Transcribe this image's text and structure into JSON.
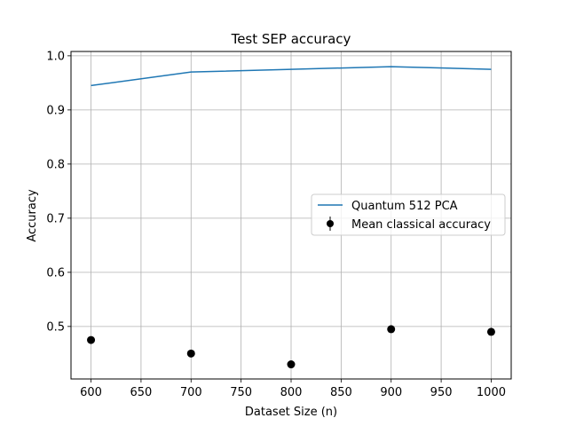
{
  "chart_data": {
    "type": "line",
    "title": "Test SEP accuracy",
    "xlabel": "Dataset Size (n)",
    "ylabel": "Accuracy",
    "xlim": [
      580,
      1020
    ],
    "ylim": [
      0.403,
      1.008
    ],
    "xticks": [
      600,
      650,
      700,
      750,
      800,
      850,
      900,
      950,
      1000
    ],
    "yticks": [
      0.5,
      0.6,
      0.7,
      0.8,
      0.9,
      1.0
    ],
    "xtick_labels": [
      "600",
      "650",
      "700",
      "750",
      "800",
      "850",
      "900",
      "950",
      "1000"
    ],
    "ytick_labels": [
      "0.5",
      "0.6",
      "0.7",
      "0.8",
      "0.9",
      "1.0"
    ],
    "grid": true,
    "legend_position": "center-right",
    "series": [
      {
        "name": "Quantum 512 PCA",
        "kind": "line",
        "color": "#1f77b4",
        "x": [
          600,
          700,
          800,
          900,
          1000
        ],
        "y": [
          0.945,
          0.97,
          0.975,
          0.98,
          0.975
        ]
      },
      {
        "name": "Mean classical accuracy",
        "kind": "errorbar-points",
        "color": "#000000",
        "x": [
          600,
          700,
          800,
          900,
          1000
        ],
        "y": [
          0.475,
          0.45,
          0.43,
          0.495,
          0.49
        ]
      }
    ]
  }
}
